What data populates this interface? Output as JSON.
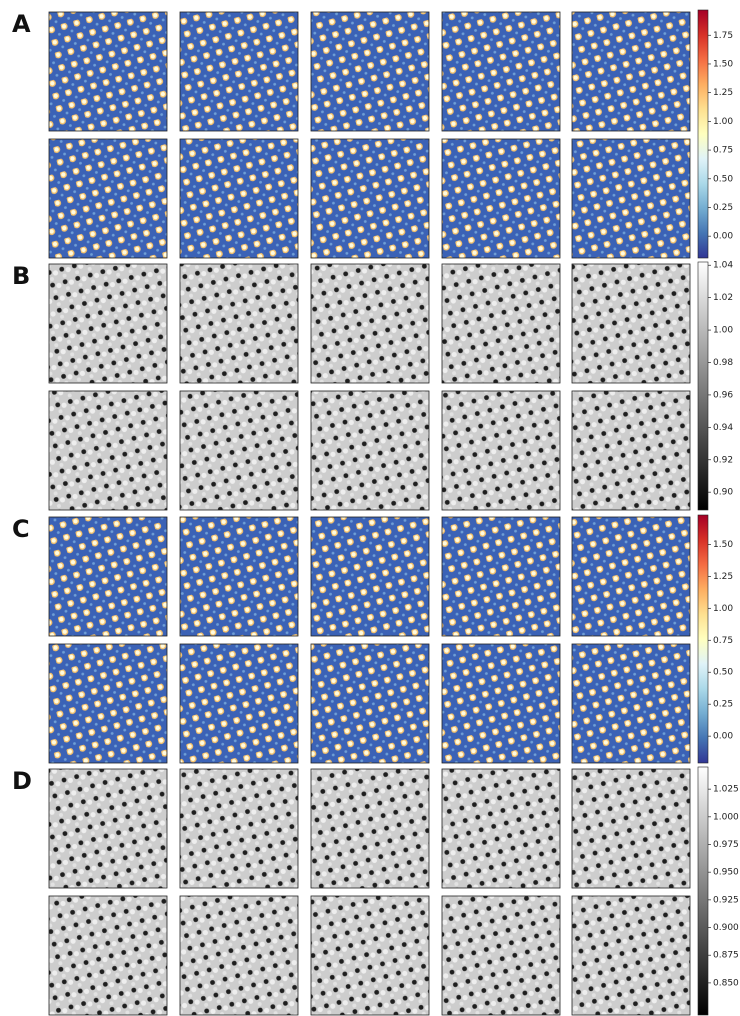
{
  "groups": [
    {
      "label": "A",
      "colors": [
        "#313695",
        "#4575b4",
        "#74add1",
        "#abd9e9",
        "#e0f3f8",
        "#ffffbf",
        "#fee090",
        "#fdae61",
        "#f46d43",
        "#d73027",
        "#a50026"
      ],
      "colorbar": {
        "lim": [
          -0.19,
          1.97
        ],
        "ticks": [
          {
            "value": 0,
            "label": "0.00"
          },
          0.25,
          {
            "value": 0.5,
            "label": "0.50"
          },
          0.75,
          {
            "value": 1,
            "label": "1.00"
          },
          1.25,
          {
            "value": 1.5,
            "label": "1.50"
          },
          1.75
        ]
      }
    },
    {
      "label": "B",
      "colors": [
        "#000000",
        "#ffffff"
      ],
      "colorbar": {
        "lim": [
          0.889,
          1.042
        ],
        "ticks": [
          {
            "value": 0.9,
            "label": "0.90"
          },
          0.92,
          0.94,
          0.96,
          0.98,
          {
            "value": 1,
            "label": "1.00"
          },
          1.02,
          1.04
        ]
      }
    },
    {
      "label": "C",
      "colors": [
        "#313695",
        "#4575b4",
        "#74add1",
        "#abd9e9",
        "#e0f3f8",
        "#ffffbf",
        "#fee090",
        "#fdae61",
        "#f46d43",
        "#d73027",
        "#a50026"
      ],
      "colorbar": {
        "lim": [
          -0.21,
          1.73
        ],
        "ticks": [
          {
            "value": 0,
            "label": "0.00"
          },
          0.25,
          {
            "value": 0.5,
            "label": "0.50"
          },
          0.75,
          {
            "value": 1,
            "label": "1.00"
          },
          1.25,
          {
            "value": 1.5,
            "label": "1.50"
          }
        ]
      }
    },
    {
      "label": "D",
      "colors": [
        "#000000",
        "#ffffff"
      ],
      "colorbar": {
        "lim": [
          0.821,
          1.045
        ],
        "ticks": [
          {
            "value": 0.85,
            "label": "0.850"
          },
          0.875,
          {
            "value": 0.9,
            "label": "0.900"
          },
          0.925,
          {
            "value": 0.95,
            "label": "0.950"
          },
          0.975,
          {
            "value": 1,
            "label": "1.000"
          },
          1.025
        ]
      }
    }
  ]
}
